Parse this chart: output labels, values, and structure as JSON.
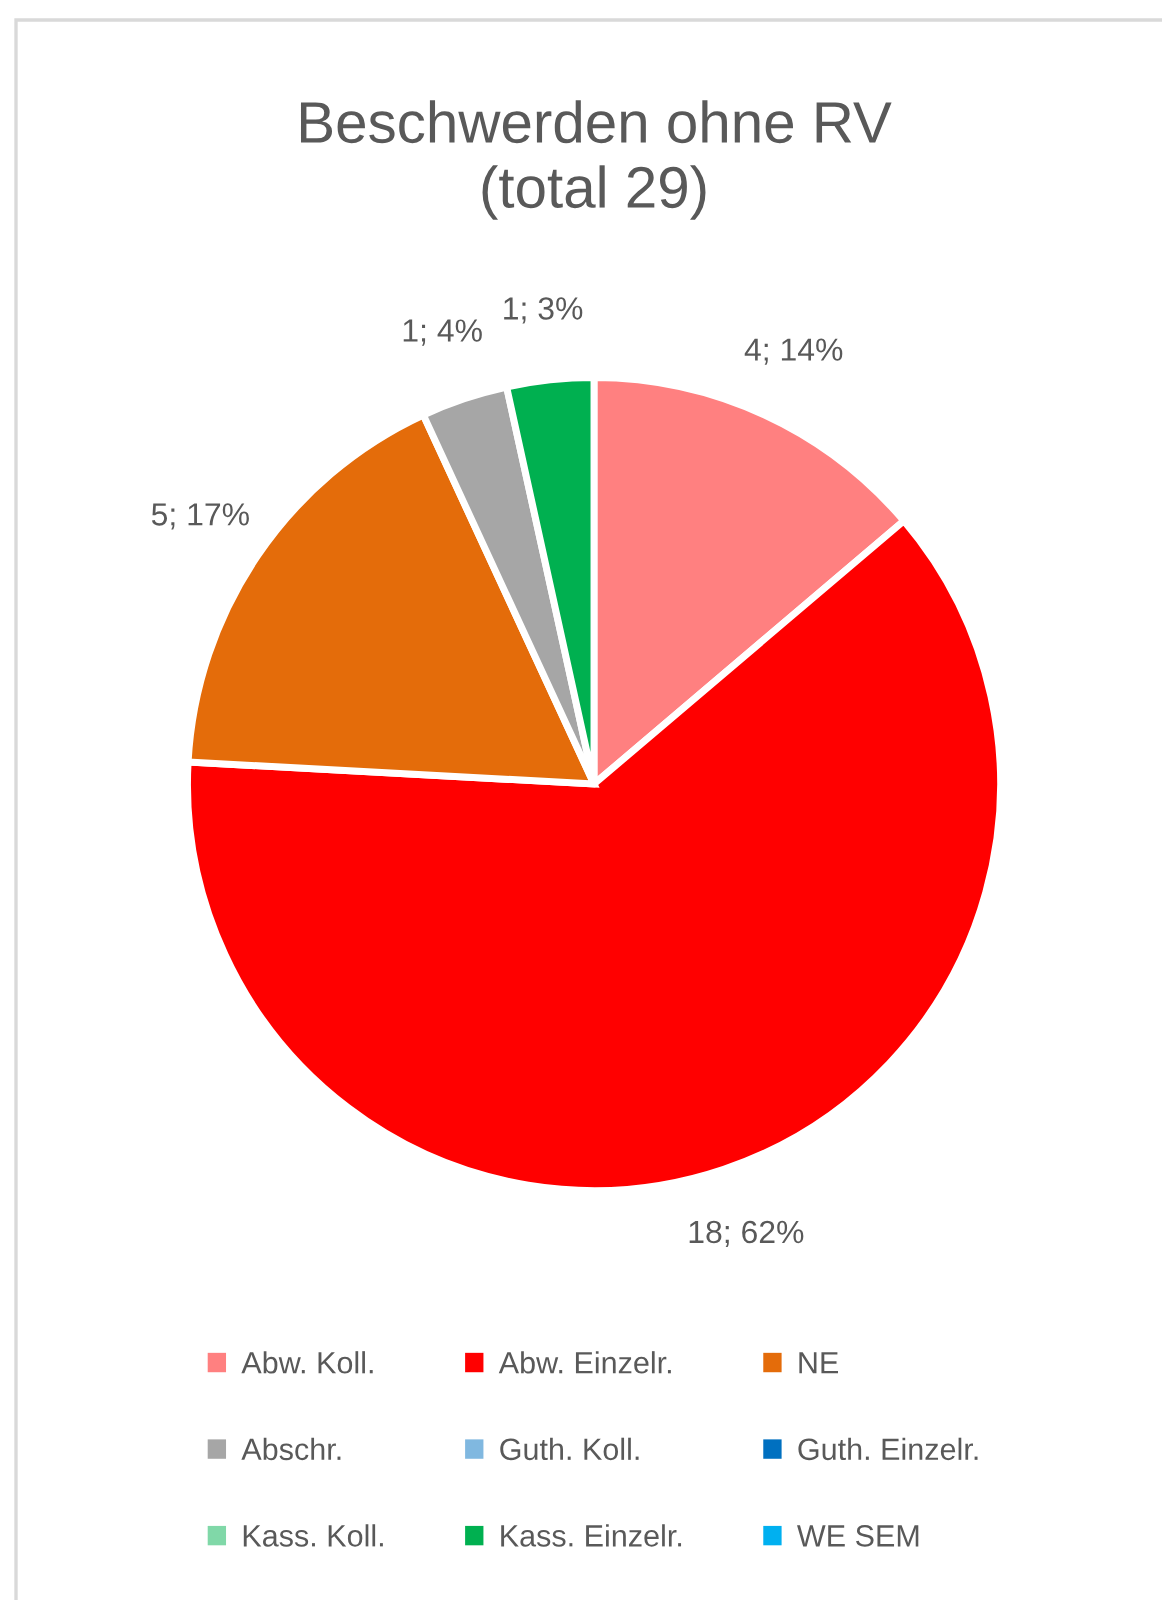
{
  "chart_data": {
    "type": "pie",
    "title": "Beschwerden ohne RV\n(total 29)",
    "categories": [
      "Abw. Koll.",
      "Abw. Einzelr.",
      "NE",
      "Abschr.",
      "Guth. Koll.",
      "Guth. Einzelr.",
      "Kass. Koll.",
      "Kass. Einzelr.",
      "WE SEM"
    ],
    "values": [
      4,
      18,
      5,
      1,
      0,
      0,
      0,
      1,
      0
    ],
    "colors": [
      "#ff8080",
      "#ff0000",
      "#e46c0a",
      "#a6a6a6",
      "#80b8e0",
      "#0070c0",
      "#80d8a8",
      "#00b050",
      "#00b0f0"
    ],
    "value_labels": [
      "4; 14%",
      "18; 62%",
      "5; 17%",
      "1; 4%",
      null,
      null,
      null,
      "1; 3%",
      null
    ],
    "legend": "bottom"
  }
}
